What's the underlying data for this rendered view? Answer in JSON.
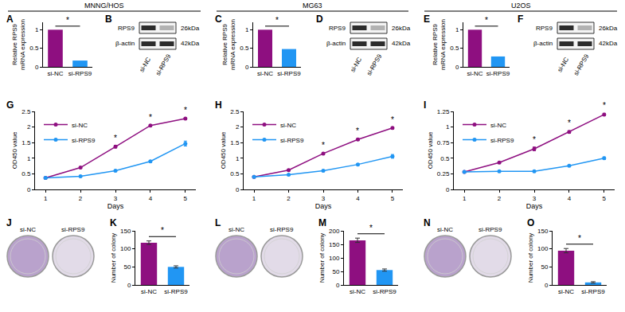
{
  "cell_lines": [
    "MNNG/HOS",
    "MG63",
    "U2OS"
  ],
  "chart_data": [
    {
      "panel": "A",
      "type": "bar",
      "categories": [
        "si-NC",
        "si-RPS9"
      ],
      "values": [
        1.0,
        0.17
      ],
      "colors": [
        "#8e0f80",
        "#2196f3"
      ],
      "y_label": "Relative RPS9\nmRNA expression",
      "ylim": [
        0,
        1.2
      ],
      "yticks": [
        0,
        0.5,
        1
      ],
      "annotations": [
        {
          "text": "*",
          "between": [
            "si-NC",
            "si-RPS9"
          ]
        }
      ]
    },
    {
      "panel": "C",
      "type": "bar",
      "categories": [
        "si-NC",
        "si-RPS9"
      ],
      "values": [
        1.0,
        0.48
      ],
      "colors": [
        "#8e0f80",
        "#2196f3"
      ],
      "y_label": "Relative RPS9\nmRNA expression",
      "ylim": [
        0,
        1.2
      ],
      "yticks": [
        0,
        0.5,
        1
      ],
      "annotations": [
        {
          "text": "*",
          "between": [
            "si-NC",
            "si-RPS9"
          ]
        }
      ]
    },
    {
      "panel": "E",
      "type": "bar",
      "categories": [
        "si-NC",
        "si-RPS9"
      ],
      "values": [
        1.0,
        0.28
      ],
      "colors": [
        "#8e0f80",
        "#2196f3"
      ],
      "y_label": "Relative RPS9\nmRNA expression",
      "ylim": [
        0,
        1.2
      ],
      "yticks": [
        0,
        0.5,
        1
      ],
      "annotations": [
        {
          "text": "*",
          "between": [
            "si-NC",
            "si-RPS9"
          ]
        }
      ]
    },
    {
      "panel": "G",
      "type": "line",
      "x": [
        1,
        2,
        3,
        4,
        5
      ],
      "x_label": "Days",
      "y_label": "OD450 value",
      "xlim": [
        0.7,
        5.3
      ],
      "xticks": [
        1,
        2,
        3,
        4,
        5
      ],
      "ylim": [
        0,
        2.5
      ],
      "yticks": [
        0,
        0.5,
        1,
        1.5,
        2,
        2.5
      ],
      "legend": "upper left",
      "marker": "circle",
      "series": [
        {
          "name": "si-NC",
          "color": "#8e0f80",
          "values": [
            0.37,
            0.7,
            1.37,
            2.05,
            2.27
          ],
          "errors": [
            0.02,
            0.02,
            0.04,
            0.02,
            0.02
          ]
        },
        {
          "name": "si-RPS9",
          "color": "#2196f3",
          "values": [
            0.37,
            0.42,
            0.6,
            0.9,
            1.47
          ],
          "errors": [
            0.02,
            0.02,
            0.02,
            0.03,
            0.08
          ]
        }
      ],
      "annotations": [
        {
          "x": 3,
          "text": "*"
        },
        {
          "x": 4,
          "text": "*"
        },
        {
          "x": 5,
          "text": "*"
        }
      ]
    },
    {
      "panel": "H",
      "type": "line",
      "x": [
        1,
        2,
        3,
        4,
        5
      ],
      "x_label": "Days",
      "y_label": "OD450 value",
      "xlim": [
        0.7,
        5.3
      ],
      "xticks": [
        1,
        2,
        3,
        4,
        5
      ],
      "ylim": [
        0,
        2.5
      ],
      "yticks": [
        0,
        0.5,
        1,
        1.5,
        2,
        2.5
      ],
      "legend": "upper left",
      "marker": "circle",
      "series": [
        {
          "name": "si-NC",
          "color": "#8e0f80",
          "values": [
            0.4,
            0.62,
            1.15,
            1.6,
            1.97
          ],
          "errors": [
            0.02,
            0.02,
            0.03,
            0.03,
            0.03
          ]
        },
        {
          "name": "si-RPS9",
          "color": "#2196f3",
          "values": [
            0.4,
            0.47,
            0.6,
            0.8,
            1.06
          ],
          "errors": [
            0.02,
            0.02,
            0.02,
            0.02,
            0.06
          ]
        }
      ],
      "annotations": [
        {
          "x": 3,
          "text": "*"
        },
        {
          "x": 4,
          "text": "*"
        },
        {
          "x": 5,
          "text": "*"
        }
      ]
    },
    {
      "panel": "I",
      "type": "line",
      "x": [
        1,
        2,
        3,
        4,
        5
      ],
      "x_label": "Days",
      "y_label": "OD450 value",
      "xlim": [
        0.7,
        5.3
      ],
      "xticks": [
        1,
        2,
        3,
        4,
        5
      ],
      "ylim": [
        0,
        1.25
      ],
      "yticks": [
        0,
        0.25,
        0.5,
        0.75,
        1,
        1.25
      ],
      "legend": "upper left",
      "marker": "circle",
      "series": [
        {
          "name": "si-NC",
          "color": "#8e0f80",
          "values": [
            0.28,
            0.43,
            0.65,
            0.92,
            1.2
          ],
          "errors": [
            0.01,
            0.01,
            0.03,
            0.02,
            0.02
          ]
        },
        {
          "name": "si-RPS9",
          "color": "#2196f3",
          "values": [
            0.28,
            0.29,
            0.29,
            0.38,
            0.5
          ],
          "errors": [
            0.01,
            0.01,
            0.01,
            0.01,
            0.02
          ]
        }
      ],
      "annotations": [
        {
          "x": 3,
          "text": "*"
        },
        {
          "x": 4,
          "text": "*"
        },
        {
          "x": 5,
          "text": "*"
        }
      ]
    },
    {
      "panel": "K",
      "type": "bar",
      "categories": [
        "si-NC",
        "si-RPS9"
      ],
      "values": [
        117,
        50
      ],
      "errors": [
        5,
        3
      ],
      "colors": [
        "#8e0f80",
        "#2196f3"
      ],
      "y_label": "Number of colony",
      "ylim": [
        0,
        150
      ],
      "yticks": [
        0,
        50,
        100,
        150
      ],
      "annotations": [
        {
          "text": "*",
          "between": [
            "si-NC",
            "si-RPS9"
          ]
        }
      ]
    },
    {
      "panel": "M",
      "type": "bar",
      "categories": [
        "si-NC",
        "si-RPS9"
      ],
      "values": [
        165,
        55
      ],
      "errors": [
        8,
        4
      ],
      "colors": [
        "#8e0f80",
        "#2196f3"
      ],
      "y_label": "Number of colony",
      "ylim": [
        0,
        200
      ],
      "yticks": [
        0,
        50,
        100,
        150,
        200
      ],
      "annotations": [
        {
          "text": "*",
          "between": [
            "si-NC",
            "si-RPS9"
          ]
        }
      ]
    },
    {
      "panel": "O",
      "type": "bar",
      "categories": [
        "si-NC",
        "si-RPS9"
      ],
      "values": [
        95,
        7
      ],
      "errors": [
        6,
        2
      ],
      "colors": [
        "#8e0f80",
        "#2196f3"
      ],
      "y_label": "Number of colony",
      "ylim": [
        0,
        150
      ],
      "yticks": [
        0,
        50,
        100,
        150
      ],
      "annotations": [
        {
          "text": "*",
          "between": [
            "si-NC",
            "si-RPS9"
          ]
        }
      ]
    }
  ],
  "western_blots": [
    {
      "panel": "B",
      "bands": [
        {
          "protein": "RPS9",
          "size": "26kDa"
        },
        {
          "protein": "β-actin",
          "size": "42kDa"
        }
      ],
      "lanes": [
        "si-NC",
        "si-RPS9"
      ]
    },
    {
      "panel": "D",
      "bands": [
        {
          "protein": "RPS9",
          "size": "26kDa"
        },
        {
          "protein": "β-actin",
          "size": "42kDa"
        }
      ],
      "lanes": [
        "si-NC",
        "si-RPS9"
      ]
    },
    {
      "panel": "F",
      "bands": [
        {
          "protein": "RPS9",
          "size": "26kDa"
        },
        {
          "protein": "β-actin",
          "size": "42kDa"
        }
      ],
      "lanes": [
        "si-NC",
        "si-RPS9"
      ]
    }
  ],
  "colony_images": [
    {
      "panel": "J",
      "labels": [
        "si-NC",
        "si-RPS9"
      ]
    },
    {
      "panel": "L",
      "labels": [
        "si-NC",
        "si-RPS9"
      ]
    },
    {
      "panel": "N",
      "labels": [
        "si-NC",
        "si-RPS9"
      ]
    }
  ]
}
